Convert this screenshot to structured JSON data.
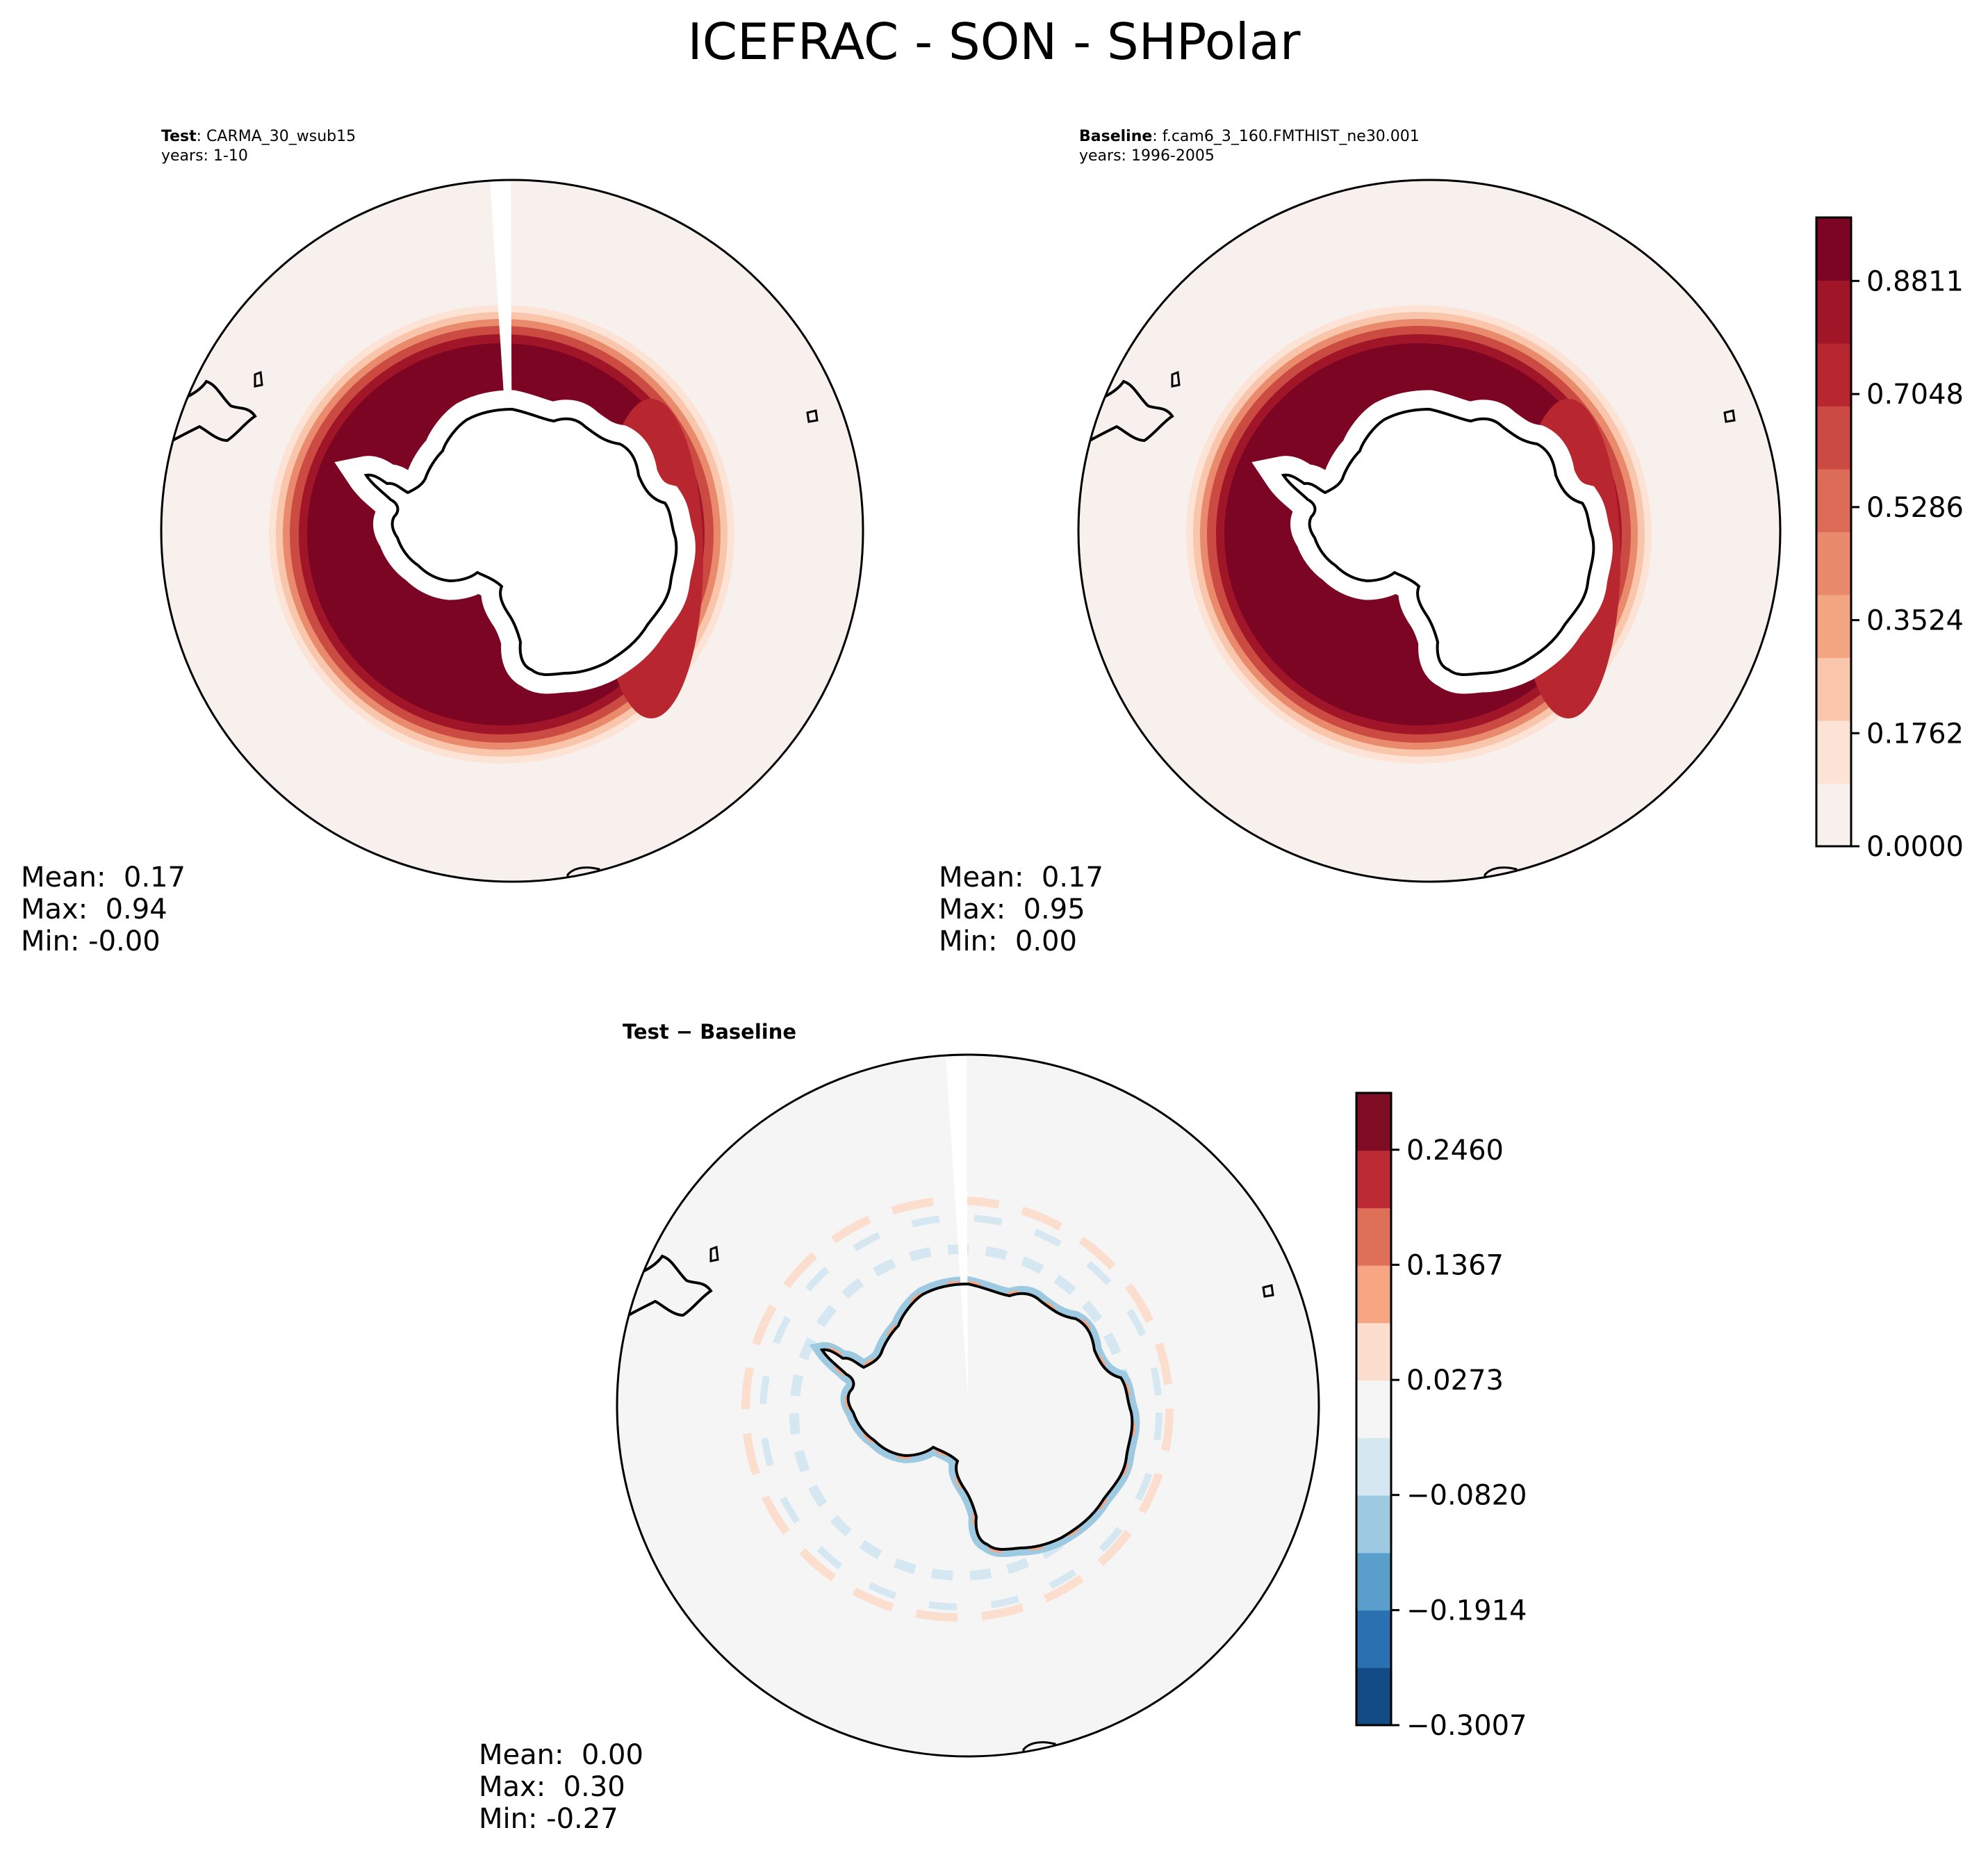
{
  "chart_data": {
    "type": "polar-contour-map",
    "title": "ICEFRAC - SON - SHPolar",
    "panels": [
      {
        "id": "test",
        "label_bold": "Test",
        "label_rest": ": CARMA_30_wsub15",
        "years": "years: 1-10",
        "stats": {
          "mean": "Mean:  0.17",
          "max": "Max:  0.94",
          "min": "Min: -0.00"
        },
        "colormap": "RdBu_r",
        "data_gap_meridian": true,
        "sea_ice_edge_latitude_approx": -58
      },
      {
        "id": "baseline",
        "label_bold": "Baseline",
        "label_rest": ": f.cam6_3_160.FMTHIST_ne30.001",
        "years": "years: 1996-2005",
        "stats": {
          "mean": "Mean:  0.17",
          "max": "Max:  0.95",
          "min": "Min:  0.00"
        },
        "colormap": "RdBu_r",
        "data_gap_meridian": false,
        "sea_ice_edge_latitude_approx": -58
      },
      {
        "id": "diff",
        "label": "Test − Baseline",
        "stats": {
          "mean": "Mean:  0.00",
          "max": "Max:  0.30",
          "min": "Min: -0.27"
        },
        "colormap": "RdBu_r",
        "data_gap_meridian": true
      }
    ],
    "colorbars": [
      {
        "id": "main",
        "range": [
          0.0,
          0.98
        ],
        "levels": 11,
        "ticks": [
          0.0,
          0.1762,
          0.3524,
          0.5286,
          0.7048,
          0.8811
        ],
        "tick_labels": [
          "0.0000",
          "0.1762",
          "0.3524",
          "0.5286",
          "0.7048",
          "0.8811"
        ],
        "colors": [
          "#f7f0ed",
          "#fde3d5",
          "#f9c5ab",
          "#f4a582",
          "#e98a6d",
          "#dc6b58",
          "#cb4a42",
          "#b8262f",
          "#a01527",
          "#7c0523"
        ]
      },
      {
        "id": "diff",
        "range": [
          -0.3007,
          0.3
        ],
        "ticks": [
          -0.3007,
          -0.1914,
          -0.082,
          0.0273,
          0.1367,
          0.246
        ],
        "tick_labels": [
          "−0.3007",
          "−0.1914",
          "−0.0820",
          "0.0273",
          "0.1367",
          "0.2460"
        ],
        "colors": [
          "#134b87",
          "#2a71b2",
          "#5a9ecc",
          "#9dcae1",
          "#d5e7f1",
          "#f5f5f5",
          "#fcdecf",
          "#f6a683",
          "#de6f59",
          "#bc2b33",
          "#7e0d24"
        ]
      }
    ]
  }
}
